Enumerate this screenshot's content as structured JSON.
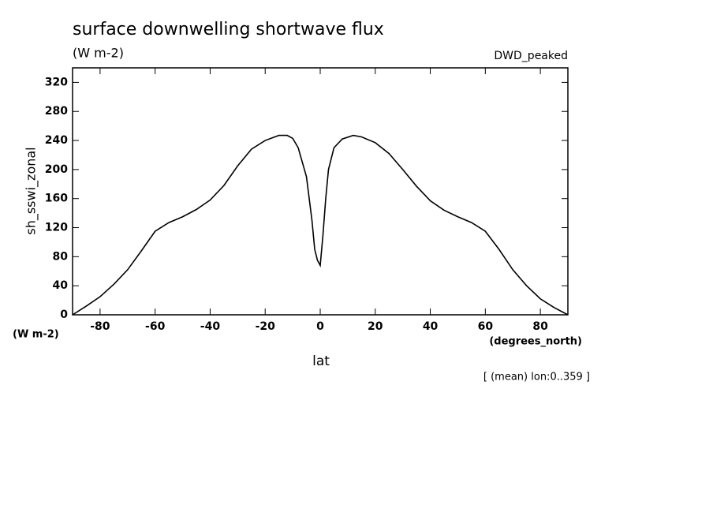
{
  "chart_data": {
    "type": "line",
    "title": "surface downwelling shortwave flux",
    "subtitle": "(W m-2)",
    "dataset": "DWD_peaked",
    "y_label": "sh_sswi_zonal",
    "y_units": "(W m-2)",
    "x_label": "lat",
    "x_units": "(degrees_north)",
    "footnote": "[ (mean) lon:0..359 ]",
    "xlim": [
      -90,
      90
    ],
    "ylim": [
      0,
      340
    ],
    "xticks": [
      -80,
      -60,
      -40,
      -20,
      0,
      20,
      40,
      60,
      80
    ],
    "yticks": [
      0,
      40,
      80,
      120,
      160,
      200,
      240,
      280,
      320
    ],
    "series": [
      {
        "color": "#000000",
        "x": [
          -90,
          -85,
          -80,
          -75,
          -70,
          -65,
          -60,
          -55,
          -50,
          -45,
          -40,
          -35,
          -30,
          -25,
          -20,
          -15,
          -12,
          -10,
          -8,
          -5,
          -3,
          -2,
          -1,
          0,
          1,
          2,
          3,
          5,
          8,
          12,
          15,
          20,
          25,
          30,
          35,
          40,
          45,
          50,
          55,
          60,
          65,
          70,
          75,
          80,
          85,
          90
        ],
        "values": [
          0,
          12,
          25,
          42,
          62,
          88,
          115,
          127,
          135,
          145,
          158,
          178,
          205,
          228,
          240,
          247,
          247,
          243,
          230,
          190,
          130,
          90,
          75,
          68,
          110,
          160,
          200,
          230,
          242,
          247,
          245,
          237,
          222,
          200,
          177,
          157,
          144,
          135,
          127,
          115,
          90,
          62,
          40,
          22,
          10,
          0
        ]
      }
    ]
  }
}
